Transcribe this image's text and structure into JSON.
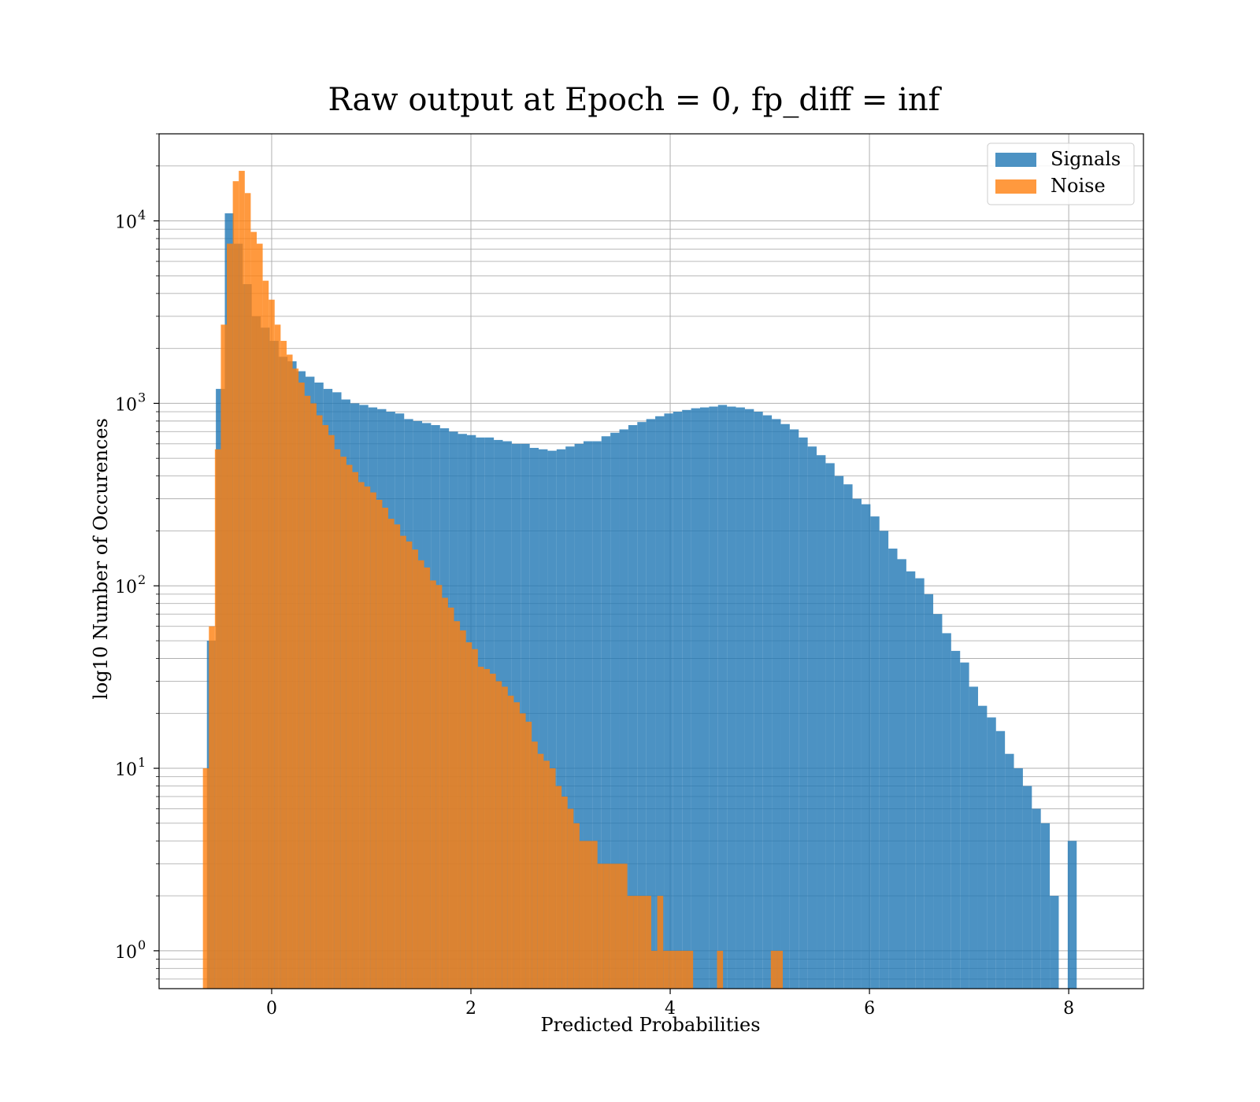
{
  "chart_data": {
    "type": "histogram",
    "title": "Raw output at Epoch = 0, fp_diff = inf",
    "xlabel": "Predicted Probabilities",
    "ylabel": "log10 Number of Occurences",
    "xlim": [
      -1.13,
      8.75
    ],
    "ylim": [
      0.62,
      30000
    ],
    "y_scale": "log",
    "grid": true,
    "legend_position": "top-right",
    "x_ticks": [
      {
        "value": 0,
        "label": "0"
      },
      {
        "value": 2,
        "label": "2"
      },
      {
        "value": 4,
        "label": "4"
      },
      {
        "value": 6,
        "label": "6"
      },
      {
        "value": 8,
        "label": "8"
      }
    ],
    "y_ticks": [
      {
        "value": 1,
        "base": "10",
        "exp": "0"
      },
      {
        "value": 10,
        "base": "10",
        "exp": "1"
      },
      {
        "value": 100,
        "base": "10",
        "exp": "2"
      },
      {
        "value": 1000,
        "base": "10",
        "exp": "3"
      },
      {
        "value": 10000,
        "base": "10",
        "exp": "4"
      }
    ],
    "series": [
      {
        "name": "Signals",
        "color": "#1f77b4",
        "opacity": 0.8,
        "bin_start": -0.65,
        "bin_width": 0.09,
        "counts": [
          50,
          1200,
          11000,
          7500,
          4500,
          3000,
          2600,
          2200,
          1800,
          1700,
          1500,
          1400,
          1300,
          1200,
          1150,
          1050,
          1000,
          980,
          950,
          930,
          900,
          880,
          820,
          800,
          780,
          760,
          730,
          700,
          680,
          670,
          650,
          650,
          630,
          620,
          600,
          600,
          570,
          560,
          550,
          560,
          580,
          600,
          620,
          620,
          660,
          690,
          720,
          760,
          790,
          820,
          850,
          880,
          900,
          920,
          940,
          950,
          960,
          980,
          960,
          950,
          930,
          900,
          860,
          820,
          770,
          720,
          650,
          580,
          520,
          470,
          400,
          360,
          300,
          280,
          240,
          200,
          160,
          140,
          120,
          110,
          90,
          70,
          55,
          44,
          38,
          28,
          22,
          19,
          16,
          12,
          10,
          8,
          6,
          5,
          2,
          0,
          4
        ]
      },
      {
        "name": "Noise",
        "color": "#ff7f0e",
        "opacity": 0.8,
        "bin_start": -0.69,
        "bin_width": 0.06,
        "counts": [
          10,
          60,
          560,
          2700,
          7500,
          16500,
          18800,
          14200,
          8700,
          7500,
          4700,
          3700,
          2700,
          2200,
          1850,
          1550,
          1300,
          1100,
          1000,
          860,
          760,
          670,
          560,
          510,
          460,
          420,
          370,
          350,
          325,
          296,
          268,
          233,
          217,
          188,
          175,
          158,
          138,
          126,
          107,
          101,
          86,
          76,
          64,
          57,
          49,
          45,
          36,
          35,
          33,
          30,
          28,
          25,
          23,
          20,
          18,
          14,
          12,
          11,
          10,
          8,
          7,
          6,
          5,
          4,
          4,
          4,
          3,
          3,
          3,
          3,
          3,
          2,
          2,
          2,
          2,
          1,
          2,
          1,
          1,
          1,
          1,
          1,
          0,
          0,
          0,
          0,
          1,
          0,
          0,
          0,
          0,
          0,
          0,
          0,
          0,
          1,
          1
        ]
      }
    ]
  }
}
